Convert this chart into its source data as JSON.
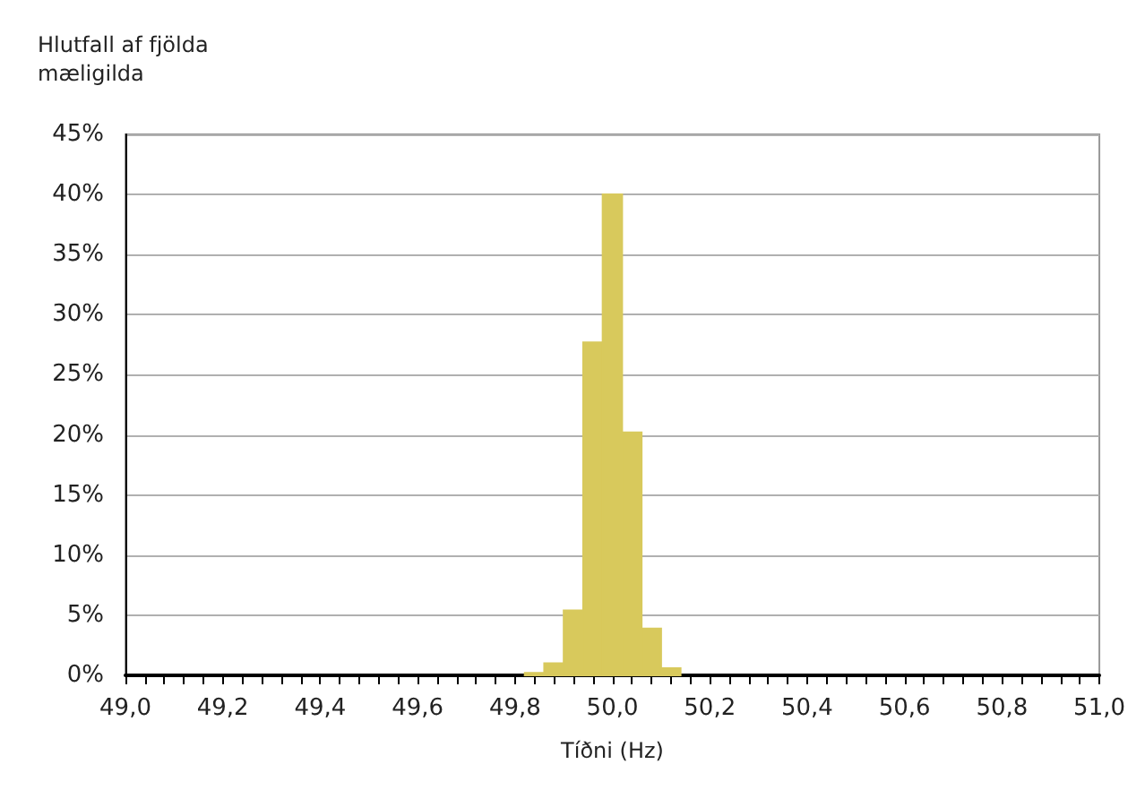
{
  "chart_data": {
    "type": "histogram",
    "ylabel": "Hlutfall af fjölda mæligilda",
    "xlabel": "Tíðni (Hz)",
    "bins": [
      49.82,
      49.86,
      49.9,
      49.94,
      49.98,
      50.02,
      50.06,
      50.1,
      50.14
    ],
    "values": [
      0.2,
      1,
      5.4,
      27.7,
      40,
      20.2,
      3.9,
      0.6
    ],
    "color": "#d8c95c",
    "xlim": [
      49,
      51
    ],
    "xticks": [
      {
        "value": 49,
        "label": "49,0"
      },
      {
        "value": 49.04,
        "label": null
      },
      {
        "value": 49.08,
        "label": null
      },
      {
        "value": 49.12,
        "label": null
      },
      {
        "value": 49.16,
        "label": null
      },
      {
        "value": 49.2,
        "label": "49,2"
      },
      {
        "value": 49.24,
        "label": null
      },
      {
        "value": 49.28,
        "label": null
      },
      {
        "value": 49.32,
        "label": null
      },
      {
        "value": 49.36,
        "label": null
      },
      {
        "value": 49.4,
        "label": "49,4"
      },
      {
        "value": 49.44,
        "label": null
      },
      {
        "value": 49.48,
        "label": null
      },
      {
        "value": 49.52,
        "label": null
      },
      {
        "value": 49.56,
        "label": null
      },
      {
        "value": 49.6,
        "label": "49,6"
      },
      {
        "value": 49.64,
        "label": null
      },
      {
        "value": 49.68,
        "label": null
      },
      {
        "value": 49.72,
        "label": null
      },
      {
        "value": 49.76,
        "label": null
      },
      {
        "value": 49.8,
        "label": "49,8"
      },
      {
        "value": 49.84,
        "label": null
      },
      {
        "value": 49.88,
        "label": null
      },
      {
        "value": 49.92,
        "label": null
      },
      {
        "value": 49.96,
        "label": null
      },
      {
        "value": 50,
        "label": "50,0"
      },
      {
        "value": 50.04,
        "label": null
      },
      {
        "value": 50.08,
        "label": null
      },
      {
        "value": 50.12,
        "label": null
      },
      {
        "value": 50.16,
        "label": null
      },
      {
        "value": 50.2,
        "label": "50,2"
      },
      {
        "value": 50.24,
        "label": null
      },
      {
        "value": 50.28,
        "label": null
      },
      {
        "value": 50.32,
        "label": null
      },
      {
        "value": 50.36,
        "label": null
      },
      {
        "value": 50.4,
        "label": "50,4"
      },
      {
        "value": 50.44,
        "label": null
      },
      {
        "value": 50.48,
        "label": null
      },
      {
        "value": 50.52,
        "label": null
      },
      {
        "value": 50.56,
        "label": null
      },
      {
        "value": 50.6,
        "label": "50,6"
      },
      {
        "value": 50.64,
        "label": null
      },
      {
        "value": 50.68,
        "label": null
      },
      {
        "value": 50.72,
        "label": null
      },
      {
        "value": 50.76,
        "label": null
      },
      {
        "value": 50.8,
        "label": "50,8"
      },
      {
        "value": 50.84,
        "label": null
      },
      {
        "value": 50.88,
        "label": null
      },
      {
        "value": 50.92,
        "label": null
      },
      {
        "value": 50.96,
        "label": null
      },
      {
        "value": 51,
        "label": "51,0"
      }
    ],
    "ylim": [
      0,
      45
    ],
    "yticks": [
      {
        "value": 0,
        "label": "0%"
      },
      {
        "value": 5,
        "label": "5%"
      },
      {
        "value": 10,
        "label": "10%"
      },
      {
        "value": 15,
        "label": "15%"
      },
      {
        "value": 20,
        "label": "20%"
      },
      {
        "value": 25,
        "label": "25%"
      },
      {
        "value": 30,
        "label": "30%"
      },
      {
        "value": 35,
        "label": "35%"
      },
      {
        "value": 40,
        "label": "40%"
      },
      {
        "value": 45,
        "label": "45%"
      }
    ],
    "grid": "y"
  }
}
